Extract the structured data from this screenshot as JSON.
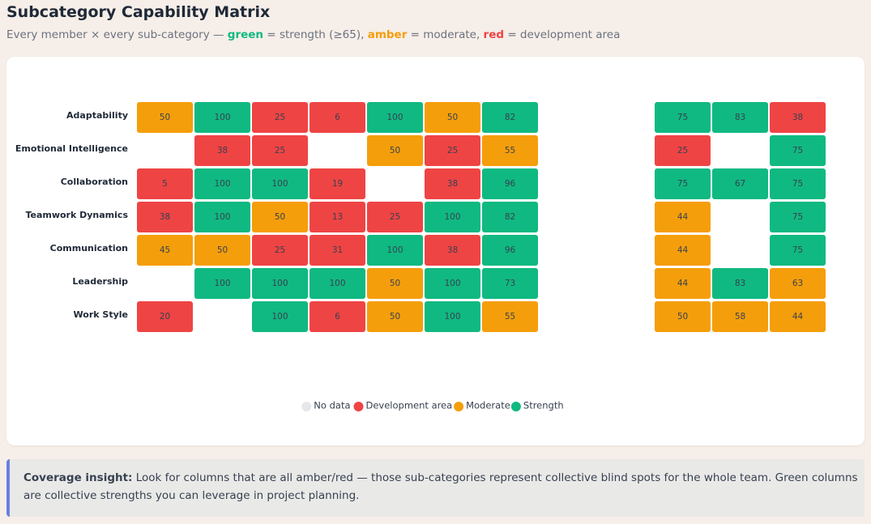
{
  "header": {
    "title": "Subcategory Capability Matrix",
    "subtitle": [
      "Every member × every sub-category — ",
      "green",
      " = strength (≥65), ",
      "amber",
      " = moderate, ",
      "red",
      " = development area"
    ]
  },
  "chart_data": {
    "type": "heatmap",
    "rows": [
      "Adaptability",
      "Emotional Intelligence",
      "Collaboration",
      "Teamwork Dynamics",
      "Communication",
      "Leadership",
      "Work Style"
    ],
    "columns": [
      null,
      null,
      null,
      null,
      null,
      null,
      null,
      null,
      null,
      null,
      null,
      null
    ],
    "values": [
      [
        50,
        100,
        25,
        6,
        100,
        50,
        82,
        null,
        null,
        75,
        83,
        38
      ],
      [
        null,
        38,
        25,
        null,
        50,
        25,
        55,
        null,
        null,
        25,
        null,
        75
      ],
      [
        5,
        100,
        100,
        19,
        null,
        38,
        96,
        null,
        null,
        75,
        67,
        75
      ],
      [
        38,
        100,
        50,
        13,
        25,
        100,
        82,
        null,
        null,
        44,
        null,
        75
      ],
      [
        45,
        50,
        25,
        31,
        100,
        38,
        96,
        null,
        null,
        44,
        null,
        75
      ],
      [
        null,
        100,
        100,
        100,
        50,
        100,
        73,
        null,
        null,
        44,
        83,
        63
      ],
      [
        20,
        null,
        100,
        6,
        50,
        100,
        55,
        null,
        null,
        50,
        58,
        44
      ]
    ],
    "legend": [
      {
        "name": "No data",
        "color": "#e5e7eb"
      },
      {
        "name": "Development area",
        "color": "#ef4444"
      },
      {
        "name": "Moderate",
        "color": "#f59e0b",
        "from": 40
      },
      {
        "name": "Strength",
        "color": "#10b981",
        "from": 65
      }
    ]
  },
  "insight": {
    "label": "Coverage insight:",
    "text": "Look for columns that are all amber/red — those sub-categories represent collective blind spots for the whole team. Green columns are collective strengths you can leverage in project planning."
  }
}
